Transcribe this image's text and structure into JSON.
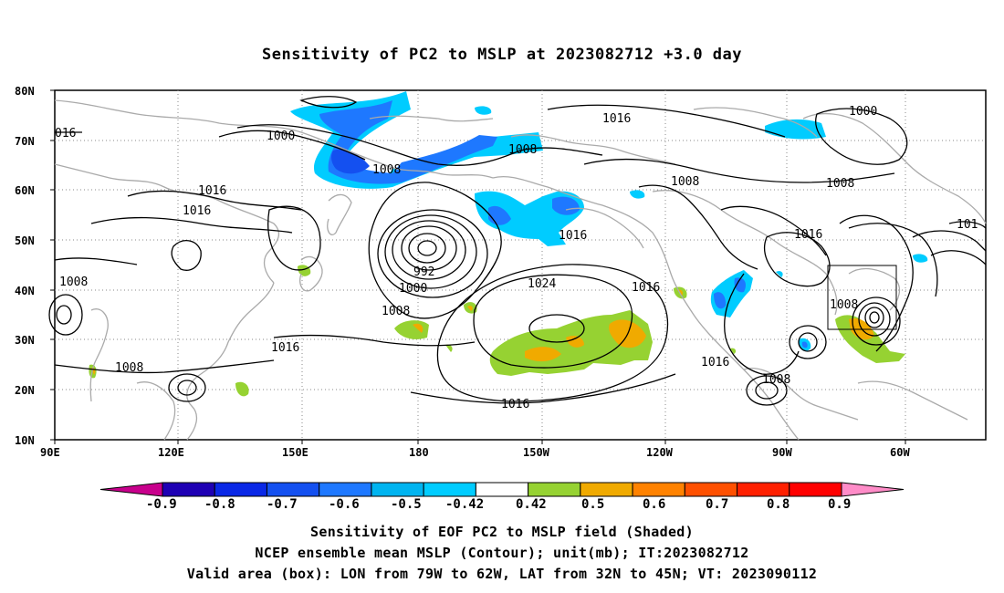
{
  "title": "Sensitivity of PC2 to MSLP at 2023082712 +3.0 day",
  "map": {
    "lat_labels": [
      "80N",
      "70N",
      "60N",
      "50N",
      "40N",
      "30N",
      "20N",
      "10N"
    ],
    "lon_labels": [
      "90E",
      "120E",
      "150E",
      "180",
      "150W",
      "120W",
      "90W",
      "60W"
    ],
    "contour_labels": [
      "016",
      "1000",
      "1008",
      "1016",
      "1016",
      "992",
      "1000",
      "1008",
      "1008",
      "1016",
      "1008",
      "1024",
      "1016",
      "1016",
      "1016",
      "1016",
      "1008",
      "1000",
      "1008",
      "1016",
      "1008",
      "1008",
      "101",
      "1016"
    ],
    "box_label": "Valid area box",
    "colors": {
      "land_outline": "#aaaaaa",
      "contour": "#000000",
      "grid": "#888888"
    }
  },
  "colorbar": {
    "labels": [
      "-0.9",
      "-0.8",
      "-0.7",
      "-0.6",
      "-0.5",
      "-0.42",
      "0.42",
      "0.5",
      "0.6",
      "0.7",
      "0.8",
      "0.9"
    ],
    "colors": [
      "#c8008c",
      "#1e00b4",
      "#0a28e6",
      "#1450f0",
      "#1e78ff",
      "#00b4f0",
      "#00ccff",
      "#ffffff",
      "#96d232",
      "#f0aa00",
      "#ff8200",
      "#ff5000",
      "#ff2000",
      "#ff0000",
      "#ff8cc8"
    ]
  },
  "captions": {
    "line1": "Sensitivity of EOF PC2 to MSLP field (Shaded)",
    "line2": "NCEP ensemble mean MSLP (Contour); unit(mb); IT:2023082712",
    "line3": "Valid area (box): LON from 79W to 62W, LAT from 32N to 45N; VT: 2023090112"
  }
}
